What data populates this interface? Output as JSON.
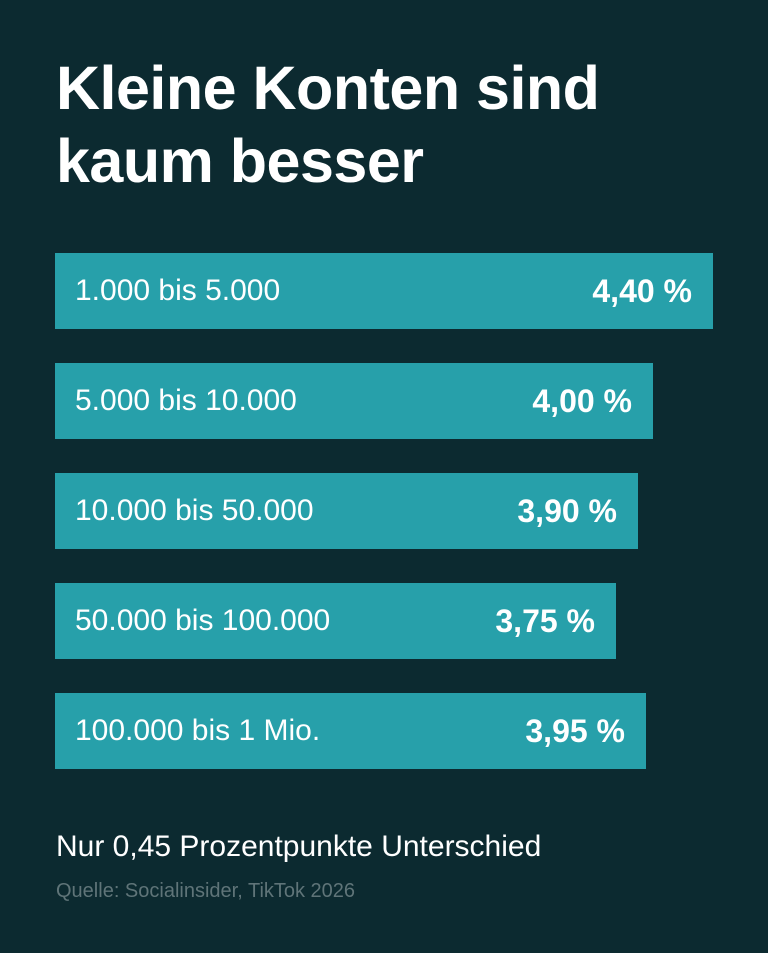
{
  "title": "Kleine Konten sind kaum besser",
  "subtitle": "Nur 0,45 Prozentpunkte Unterschied",
  "source": "Quelle: Socialinsider, TikTok 2026",
  "colors": {
    "background": "#0c2a30",
    "bar": "#27a0aa",
    "text": "#ffffff",
    "source_text": "#5f7478"
  },
  "chart_data": {
    "type": "bar",
    "orientation": "horizontal",
    "title": "Kleine Konten sind kaum besser",
    "categories": [
      "1.000 bis 5.000",
      "5.000 bis 10.000",
      "10.000 bis 50.000",
      "50.000 bis 100.000",
      "100.000 bis 1 Mio."
    ],
    "values": [
      4.4,
      4.0,
      3.9,
      3.75,
      3.95
    ],
    "value_labels": [
      "4,40 %",
      "4,00 %",
      "3,90 %",
      "3,75 %",
      "3,95 %"
    ],
    "xlabel": "",
    "ylabel": "",
    "grid": false
  }
}
